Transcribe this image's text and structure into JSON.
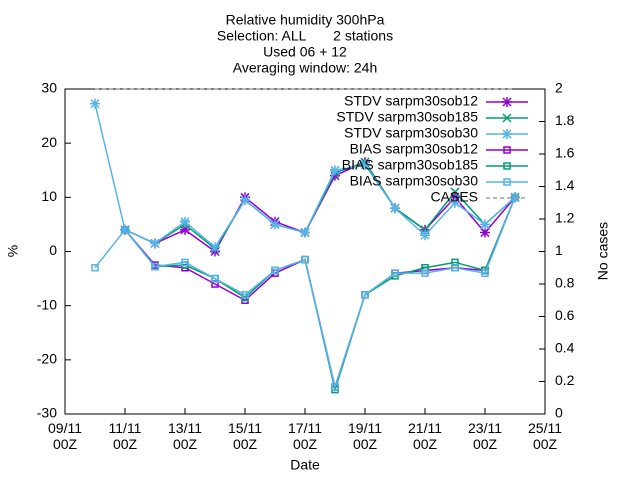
{
  "chart_data": {
    "type": "line",
    "title": [
      "Relative humidity 300hPa",
      "Selection: ALL       2 stations",
      "Used 06 + 12",
      "Averaging window: 24h"
    ],
    "xlabel": "Date",
    "ylabel": "%",
    "y2label": "No cases",
    "x": [
      1,
      2,
      3,
      4,
      5,
      6,
      7,
      8,
      9,
      10,
      11,
      12,
      13,
      14,
      15
    ],
    "xlim": [
      0,
      16
    ],
    "xticks": [
      {
        "value": 0,
        "label": "09/11\n00Z"
      },
      {
        "value": 2,
        "label": "11/11\n00Z"
      },
      {
        "value": 4,
        "label": "13/11\n00Z"
      },
      {
        "value": 6,
        "label": "15/11\n00Z"
      },
      {
        "value": 8,
        "label": "17/11\n00Z"
      },
      {
        "value": 10,
        "label": "19/11\n00Z"
      },
      {
        "value": 12,
        "label": "21/11\n00Z"
      },
      {
        "value": 14,
        "label": "23/11\n00Z"
      },
      {
        "value": 16,
        "label": "25/11\n00Z"
      }
    ],
    "ylim": [
      -30,
      30
    ],
    "yticks": [
      -30,
      -20,
      -10,
      0,
      10,
      20,
      30
    ],
    "y2lim": [
      0,
      2
    ],
    "y2ticks": [
      0,
      0.2,
      0.4,
      0.6,
      0.8,
      1,
      1.2,
      1.4,
      1.6,
      1.8,
      2
    ],
    "legend": "top-right",
    "series": [
      {
        "name": "STDV sarpm30sob12",
        "color": "#9400d3",
        "marker": "star",
        "values": [
          null,
          4,
          1.5,
          4,
          0,
          10,
          5.5,
          3.5,
          14,
          16.5,
          8,
          4,
          10,
          3.5,
          10
        ]
      },
      {
        "name": "STDV sarpm30sob185",
        "color": "#009e73",
        "marker": "x",
        "values": [
          null,
          4,
          1.5,
          5,
          0.5,
          9.5,
          5,
          3.5,
          14.5,
          16.5,
          8,
          4,
          11,
          5,
          10
        ]
      },
      {
        "name": "STDV sarpm30sob30",
        "color": "#56b4e9",
        "marker": "star",
        "values": [
          27.3,
          4,
          1.5,
          5.5,
          0.8,
          9.5,
          5,
          3.5,
          15,
          16,
          8,
          3,
          9,
          5,
          10
        ]
      },
      {
        "name": "BIAS sarpm30sob12",
        "color": "#9400d3",
        "marker": "square",
        "values": [
          null,
          4,
          -2.5,
          -3,
          -6,
          -9,
          -4,
          -1.5,
          -25,
          -8,
          -4,
          -3.5,
          -3,
          -3.5,
          10
        ]
      },
      {
        "name": "BIAS sarpm30sob185",
        "color": "#009e73",
        "marker": "square",
        "values": [
          null,
          4,
          -2.8,
          -2.5,
          -5,
          -8.5,
          -3.5,
          -1.5,
          -25.5,
          -8,
          -4.5,
          -3,
          -2,
          -3.5,
          10
        ]
      },
      {
        "name": "BIAS sarpm30sob30",
        "color": "#56b4e9",
        "marker": "square",
        "values": [
          -3,
          4,
          -2.8,
          -2,
          -5,
          -8,
          -3.5,
          -1.5,
          -25,
          -8,
          -4,
          -4,
          -3,
          -4,
          10
        ]
      },
      {
        "name": "CASES",
        "color": "#a0a0a0",
        "dash": true,
        "axis": "y2",
        "values": [
          2,
          2,
          2,
          2,
          2,
          2,
          2,
          2,
          2,
          2,
          2,
          2,
          2,
          2,
          2
        ]
      }
    ]
  }
}
